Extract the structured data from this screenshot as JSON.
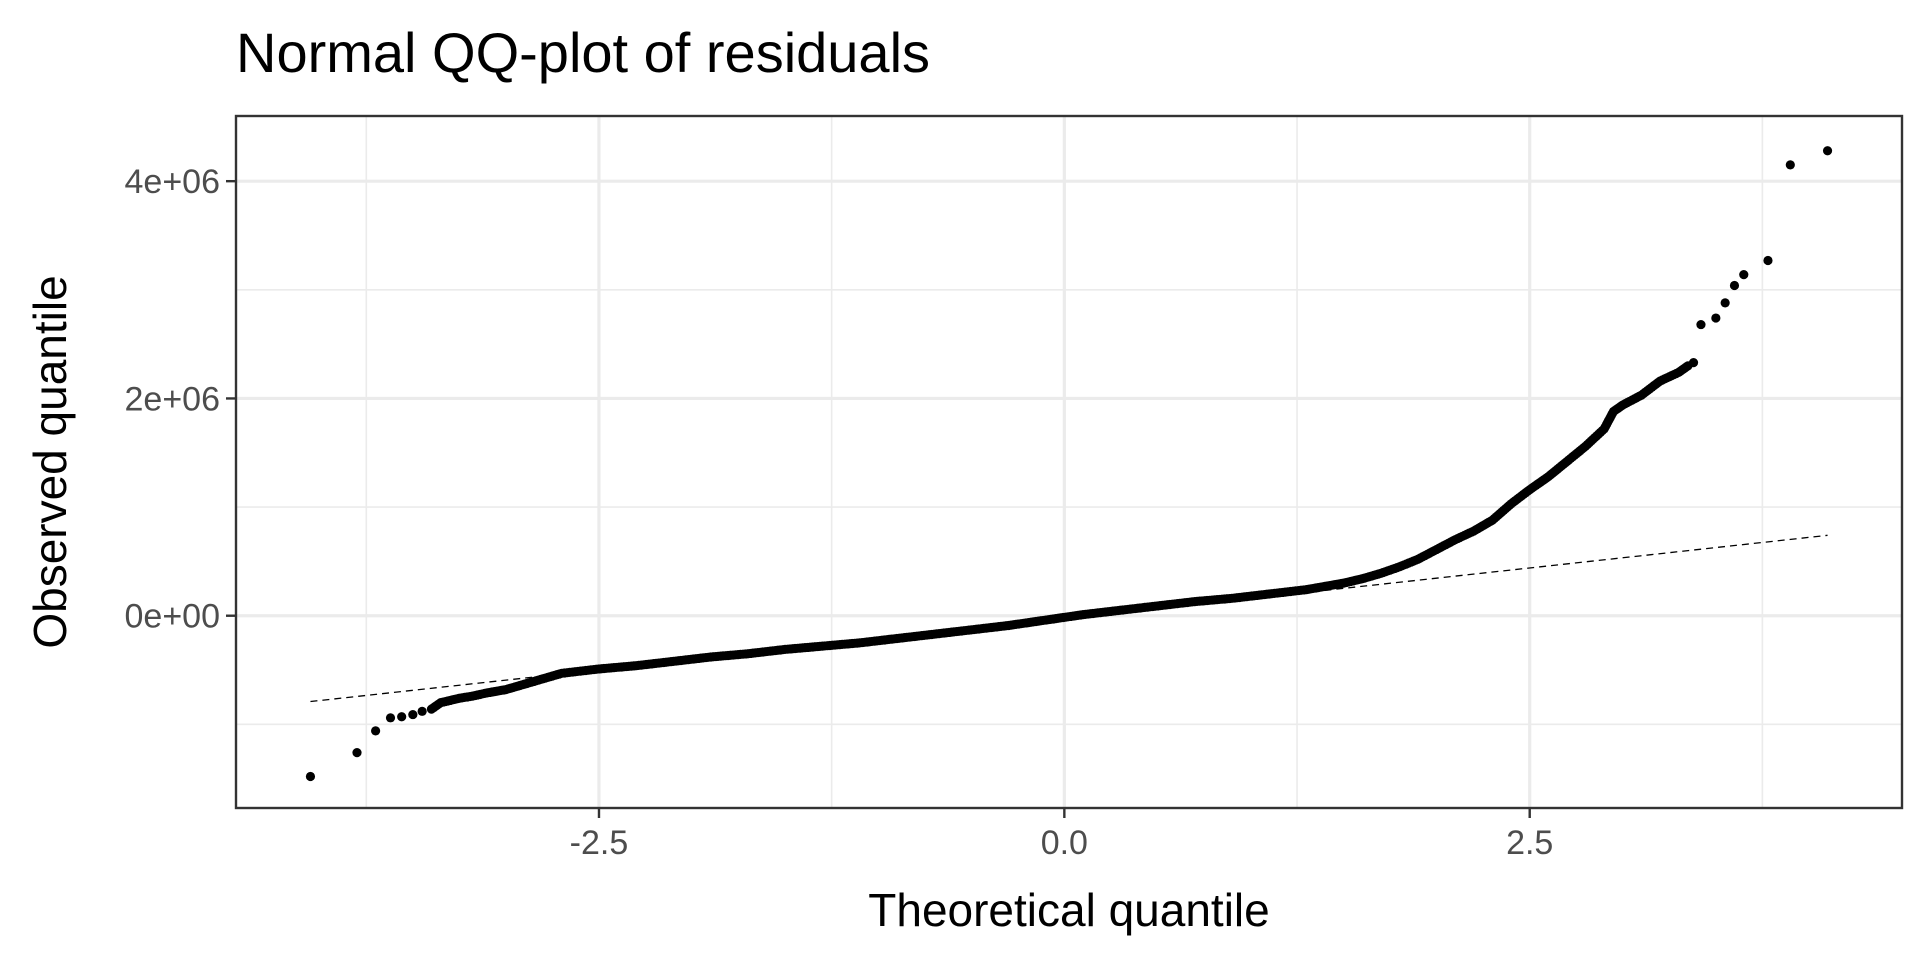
{
  "chart_data": {
    "type": "scatter",
    "title": "Normal QQ-plot of residuals",
    "xlabel": "Theoretical quantile",
    "ylabel": "Observed quantile",
    "xlim": [
      -4.45,
      4.5
    ],
    "ylim": [
      -1.77,
      4.6
    ],
    "x_ticks": [
      -2.5,
      0.0,
      2.5
    ],
    "x_tick_labels": [
      "-2.5",
      "0.0",
      "2.5"
    ],
    "x_minor_ticks": [
      -3.75,
      -1.25,
      1.25,
      3.75
    ],
    "y_ticks": [
      0,
      2,
      4
    ],
    "y_tick_labels": [
      "0e+00",
      "2e+06",
      "4e+06"
    ],
    "y_minor_ticks": [
      -1,
      1,
      3
    ],
    "y_units": 1000000,
    "grid": true,
    "legend": "none",
    "reference_line": {
      "style": "dashed",
      "x": [
        -4.05,
        4.1
      ],
      "y": [
        -0.79,
        0.74
      ]
    },
    "points": {
      "x": [
        -4.05,
        -3.8,
        -3.7,
        -3.62,
        -3.56,
        -3.5,
        -3.45,
        -3.4,
        -3.35,
        -3.3,
        -3.25,
        -3.18,
        -3.1,
        -3.0,
        -2.9,
        -2.8,
        -2.7,
        -2.6,
        -2.5,
        -2.3,
        -2.1,
        -1.9,
        -1.7,
        -1.5,
        -1.3,
        -1.1,
        -0.9,
        -0.7,
        -0.5,
        -0.3,
        -0.1,
        0.1,
        0.3,
        0.5,
        0.7,
        0.9,
        1.1,
        1.2,
        1.3,
        1.4,
        1.5,
        1.6,
        1.7,
        1.8,
        1.9,
        2.0,
        2.1,
        2.2,
        2.3,
        2.4,
        2.5,
        2.6,
        2.7,
        2.8,
        2.9,
        2.95,
        3.0,
        3.1,
        3.2,
        3.3,
        3.35,
        3.38,
        3.42,
        3.5,
        3.55,
        3.6,
        3.65,
        3.78,
        3.9,
        4.1
      ],
      "y": [
        -1.48,
        -1.26,
        -1.06,
        -0.94,
        -0.93,
        -0.91,
        -0.88,
        -0.86,
        -0.8,
        -0.78,
        -0.76,
        -0.74,
        -0.71,
        -0.68,
        -0.63,
        -0.58,
        -0.53,
        -0.51,
        -0.49,
        -0.46,
        -0.42,
        -0.38,
        -0.35,
        -0.31,
        -0.28,
        -0.25,
        -0.21,
        -0.17,
        -0.13,
        -0.09,
        -0.04,
        0.01,
        0.05,
        0.09,
        0.13,
        0.16,
        0.2,
        0.22,
        0.24,
        0.27,
        0.3,
        0.34,
        0.39,
        0.45,
        0.52,
        0.61,
        0.7,
        0.78,
        0.88,
        1.03,
        1.16,
        1.28,
        1.42,
        1.56,
        1.72,
        1.88,
        1.94,
        2.03,
        2.16,
        2.24,
        2.3,
        2.33,
        2.68,
        2.74,
        2.88,
        3.04,
        3.14,
        3.27,
        4.15,
        4.28
      ]
    }
  }
}
